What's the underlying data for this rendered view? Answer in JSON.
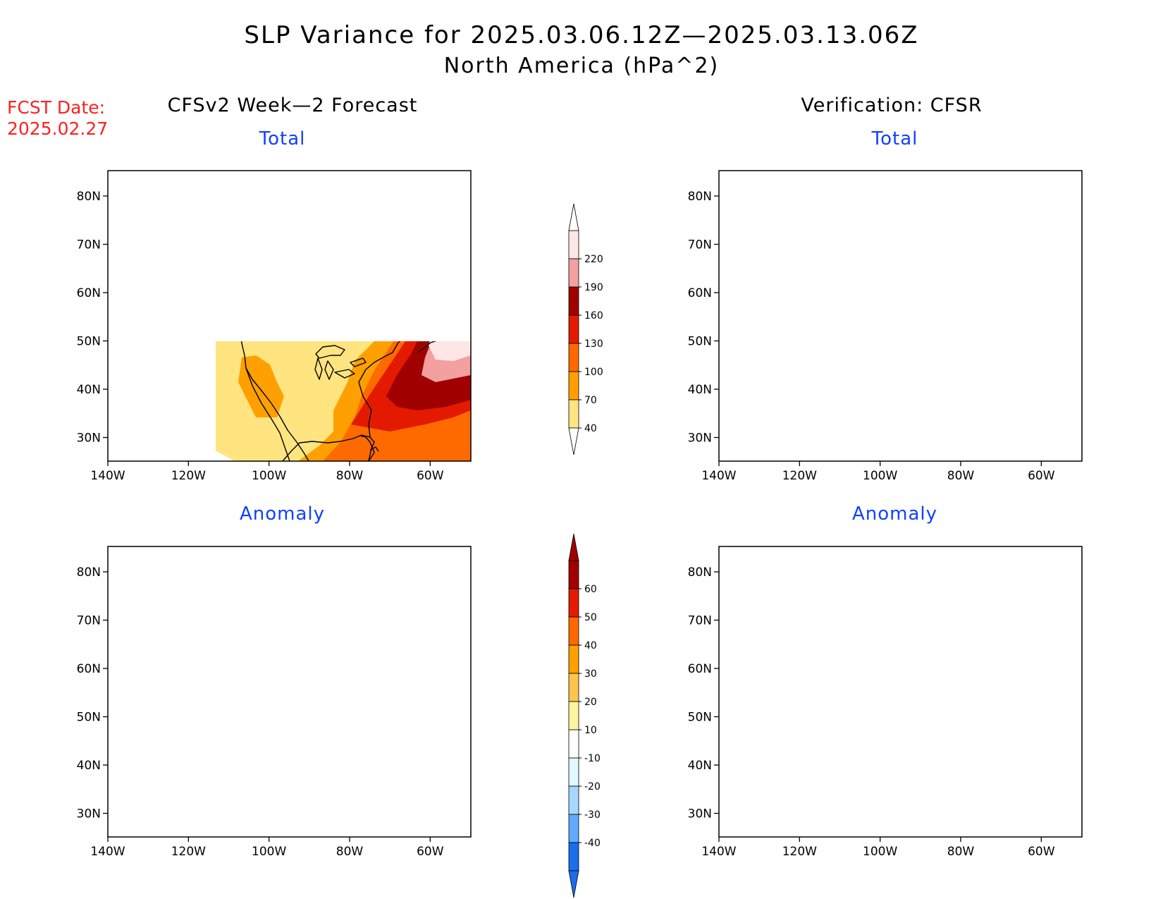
{
  "header": {
    "title": "SLP Variance for 2025.03.06.12Z—2025.03.13.06Z",
    "subtitle": "North America (hPa^2)"
  },
  "fcst": {
    "label": "FCST Date:",
    "date": "2025.02.27"
  },
  "columns": {
    "left": "CFSv2 Week—2 Forecast",
    "right": "Verification: CFSR"
  },
  "panels": {
    "total": "Total",
    "anomaly": "Anomaly"
  },
  "axes": {
    "lon_labels": [
      "140W",
      "120W",
      "100W",
      "80W",
      "60W"
    ],
    "lat_labels": [
      "80N",
      "70N",
      "60N",
      "50N",
      "40N",
      "30N"
    ]
  },
  "colorbars": {
    "total": {
      "labels": [
        "220",
        "190",
        "160",
        "130",
        "100",
        "70",
        "40"
      ],
      "colors": [
        "#ffe6e6",
        "#f2a0a0",
        "#a00000",
        "#e41a00",
        "#ff6a00",
        "#ffa000",
        "#ffe480"
      ]
    },
    "anomaly": {
      "labels": [
        "60",
        "50",
        "40",
        "30",
        "20",
        "10",
        "-10",
        "-20",
        "-30",
        "-40"
      ],
      "colors": [
        "#a00000",
        "#e41a00",
        "#ff6a00",
        "#ffa000",
        "#ffc44c",
        "#fff4a0",
        "#ffffff",
        "#e0f8ff",
        "#a6d8ff",
        "#62aaff",
        "#1a6eea"
      ]
    }
  }
}
